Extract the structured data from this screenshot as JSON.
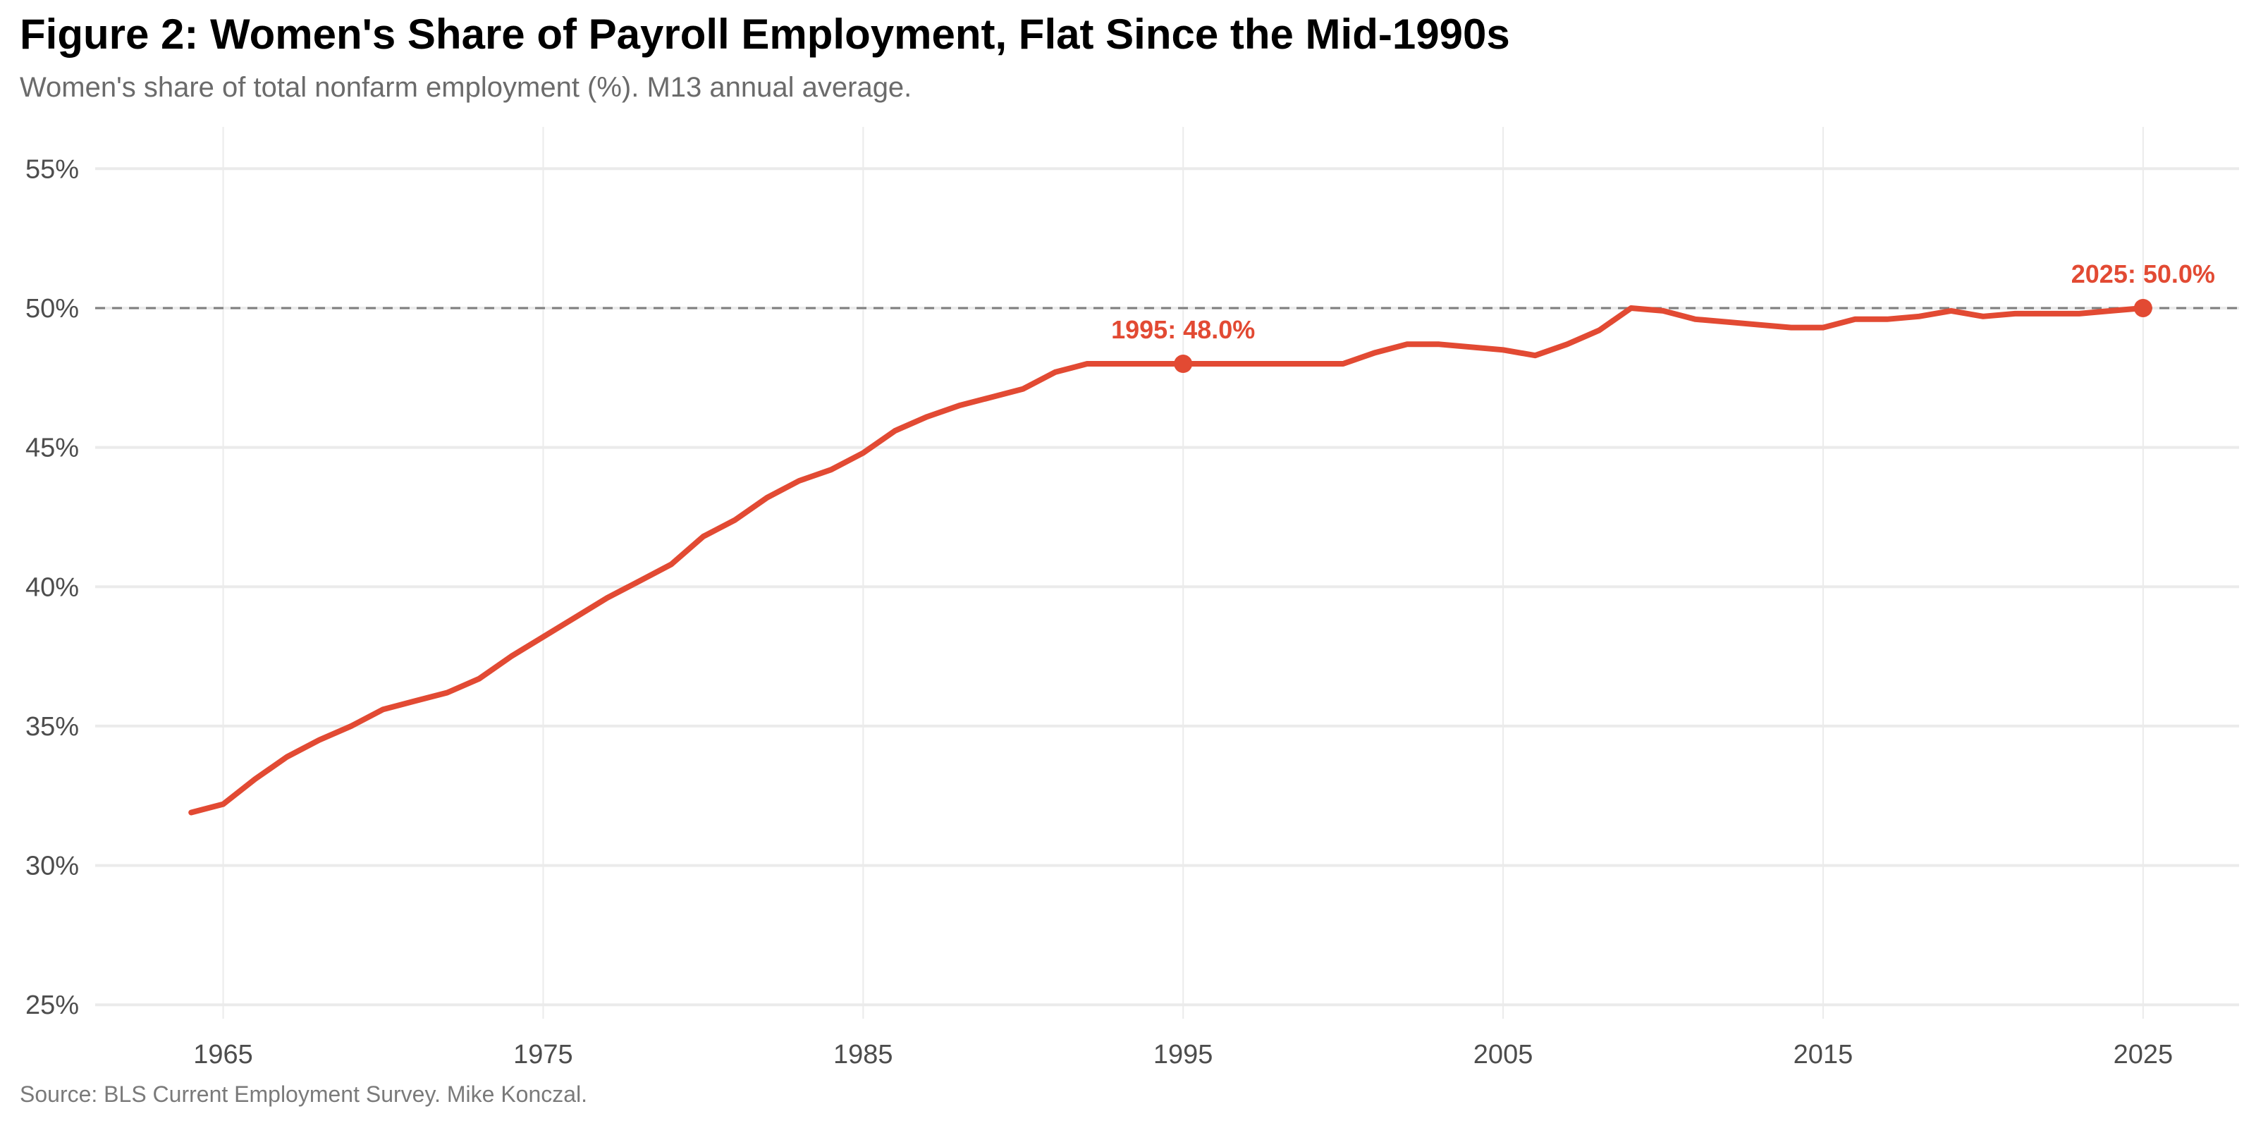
{
  "chart_data": {
    "type": "line",
    "title": "Figure 2: Women's Share of Payroll Employment, Flat Since the Mid-1990s",
    "subtitle": "Women's share of total nonfarm employment (%). M13 annual average.",
    "caption": "Source: BLS Current Employment Survey. Mike Konczal.",
    "xlabel": "",
    "ylabel": "",
    "xlim": [
      1961,
      2028
    ],
    "ylim": [
      24.5,
      56.5
    ],
    "x_ticks": [
      1965,
      1975,
      1985,
      1995,
      2005,
      2015,
      2025
    ],
    "y_ticks": [
      25,
      30,
      35,
      40,
      45,
      50,
      55
    ],
    "y_tick_labels": [
      "25%",
      "30%",
      "35%",
      "40%",
      "45%",
      "50%",
      "55%"
    ],
    "grid": true,
    "reference_line": {
      "y": 50,
      "style": "dashed"
    },
    "colors": {
      "series": "#e24a33",
      "reference": "#7f7f7f",
      "grid": "#ebebeb"
    },
    "series": [
      {
        "x": [
          1964,
          1965,
          1966,
          1967,
          1968,
          1969,
          1970,
          1971,
          1972,
          1973,
          1974,
          1975,
          1976,
          1977,
          1978,
          1979,
          1980,
          1981,
          1982,
          1983,
          1984,
          1985,
          1986,
          1987,
          1988,
          1989,
          1990,
          1991,
          1992,
          1993,
          1994,
          1995,
          1996,
          1997,
          1998,
          1999,
          2000,
          2001,
          2002,
          2003,
          2004,
          2005,
          2006,
          2007,
          2008,
          2009,
          2010,
          2011,
          2012,
          2013,
          2014,
          2015,
          2016,
          2017,
          2018,
          2019,
          2020,
          2021,
          2022,
          2023,
          2024,
          2025
        ],
        "values": [
          31.9,
          32.2,
          33.1,
          33.9,
          34.5,
          35.0,
          35.6,
          35.9,
          36.2,
          36.7,
          37.5,
          38.2,
          38.9,
          39.6,
          40.2,
          40.8,
          41.8,
          42.4,
          43.2,
          43.8,
          44.2,
          44.8,
          45.6,
          46.1,
          46.5,
          46.8,
          47.1,
          47.7,
          48.0,
          48.0,
          48.0,
          48.0,
          48.0,
          48.0,
          48.0,
          48.0,
          48.0,
          48.4,
          48.7,
          48.7,
          48.6,
          48.5,
          48.3,
          48.7,
          49.2,
          50.0,
          49.9,
          49.6,
          49.5,
          49.4,
          49.3,
          49.3,
          49.6,
          49.6,
          49.7,
          49.9,
          49.7,
          49.8,
          49.8,
          49.8,
          49.9,
          50.0
        ]
      }
    ],
    "annotations": [
      {
        "x": 1995,
        "y": 48.0,
        "label": "1995: 48.0%"
      },
      {
        "x": 2025,
        "y": 50.0,
        "label": "2025: 50.0%"
      }
    ]
  }
}
